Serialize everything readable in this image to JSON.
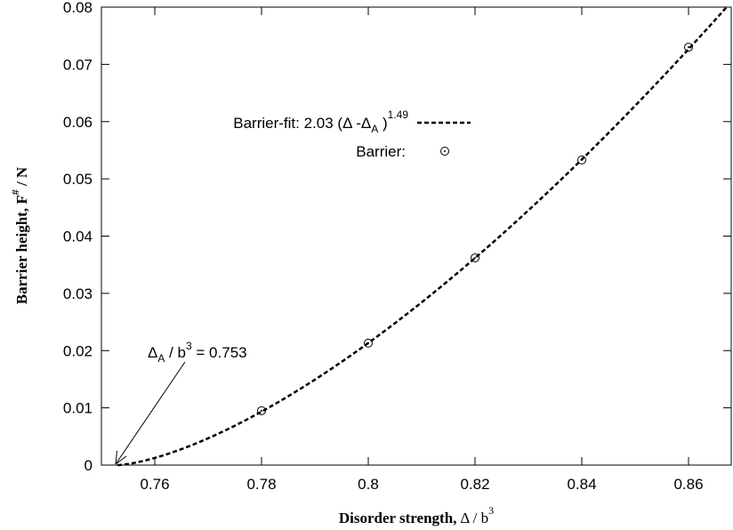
{
  "chart_data": {
    "type": "scatter",
    "xlabel": "Disorder strength, Δ / b³",
    "ylabel": "Barrier height, F# / N",
    "xlim": [
      0.75,
      0.868
    ],
    "ylim": [
      0,
      0.08
    ],
    "x_ticks": [
      0.76,
      0.78,
      0.8,
      0.82,
      0.84,
      0.86
    ],
    "x_tick_labels": [
      "0.76",
      "0.78",
      "0.8",
      "0.82",
      "0.84",
      "0.86"
    ],
    "y_ticks": [
      0,
      0.01,
      0.02,
      0.03,
      0.04,
      0.05,
      0.06,
      0.07,
      0.08
    ],
    "y_tick_labels": [
      "0",
      "0.01",
      "0.02",
      "0.03",
      "0.04",
      "0.05",
      "0.06",
      "0.07",
      "0.08"
    ],
    "grid": false,
    "legend_position": "top-center",
    "series": [
      {
        "name": "Barrier-fit: 2.03 (Δ -ΔA )1.49",
        "kind": "line",
        "style": "dashed",
        "formula": {
          "coefficient": 2.03,
          "offset": 0.753,
          "exponent": 1.49
        }
      },
      {
        "name": "Barrier:",
        "kind": "points",
        "marker": "circle-dot",
        "x": [
          0.78,
          0.8,
          0.82,
          0.84,
          0.86
        ],
        "y": [
          0.0095,
          0.0213,
          0.0362,
          0.0533,
          0.073
        ]
      }
    ],
    "annotations": [
      {
        "text": "ΔA / b³ = 0.753",
        "arrow_to": [
          0.753,
          0
        ]
      }
    ]
  },
  "labels": {
    "x_axis_main": "Disorder strength,",
    "x_axis_var": "Δ / b",
    "x_axis_sup": "3",
    "y_axis_main": "Barrier height, F",
    "y_axis_sup": "#",
    "y_axis_tail": " / N",
    "legend_fit_prefix": "Barrier-fit: 2.03 (Δ -Δ",
    "legend_fit_sub": "A",
    "legend_fit_mid": " )",
    "legend_fit_sup": "1.49",
    "legend_points": "Barrier:",
    "annot_delta": "Δ",
    "annot_sub": "A",
    "annot_mid": " / b",
    "annot_sup": "3",
    "annot_tail": " = 0.753"
  },
  "colors": {
    "line": "#000000",
    "background": "#ffffff"
  }
}
